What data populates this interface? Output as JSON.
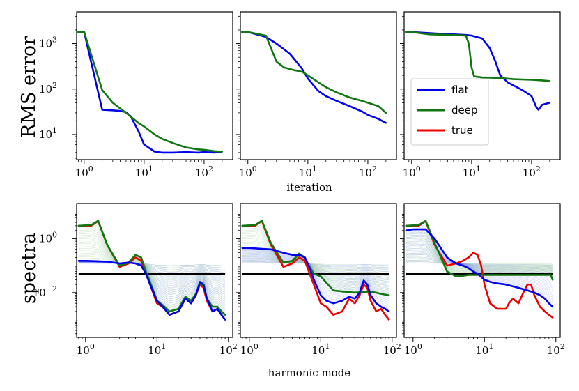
{
  "chart_data": {
    "type": "line",
    "rows": [
      {
        "ylabel": "RMS error",
        "xlabel": "iteration",
        "xscale": "log",
        "yscale": "log",
        "xlim": [
          0.75,
          300
        ],
        "ylim": [
          2.8,
          5000
        ],
        "xticks": [
          {
            "value": 1,
            "base": "10",
            "exp": "0"
          },
          {
            "value": 10,
            "base": "10",
            "exp": "1"
          },
          {
            "value": 100,
            "base": "10",
            "exp": "2"
          }
        ],
        "yticks": [
          {
            "value": 10,
            "base": "10",
            "exp": "1"
          },
          {
            "value": 100,
            "base": "10",
            "exp": "2"
          },
          {
            "value": 1000,
            "base": "10",
            "exp": "3"
          }
        ],
        "panels": [
          {
            "series": [
              {
                "name": "flat",
                "color": "#0000ee",
                "x": [
                  0.8,
                  1,
                  2,
                  3,
                  4,
                  5,
                  6,
                  8,
                  10,
                  15,
                  20,
                  30,
                  50,
                  80,
                  100,
                  150,
                  200
                ],
                "y": [
                  1800,
                  1800,
                  35,
                  34,
                  33,
                  31,
                  25,
                  12,
                  6,
                  4.2,
                  4,
                  4,
                  4.1,
                  4,
                  4.1,
                  4.0,
                  4.2
                ]
              },
              {
                "name": "deep",
                "color": "#117711",
                "x": [
                  0.8,
                  1,
                  2,
                  3,
                  5,
                  8,
                  10,
                  15,
                  20,
                  30,
                  50,
                  80,
                  100,
                  150,
                  200
                ],
                "y": [
                  1800,
                  1800,
                  95,
                  50,
                  30,
                  18,
                  15,
                  10,
                  8,
                  6.5,
                  5.2,
                  4.7,
                  4.6,
                  4.3,
                  4.2
                ]
              }
            ]
          },
          {
            "series": [
              {
                "name": "flat",
                "color": "#0000ee",
                "x": [
                  0.8,
                  1,
                  2,
                  3,
                  5,
                  8,
                  10,
                  15,
                  20,
                  30,
                  50,
                  80,
                  100,
                  150,
                  200
                ],
                "y": [
                  1800,
                  1800,
                  1400,
                  1000,
                  600,
                  280,
                  170,
                  90,
                  70,
                  55,
                  42,
                  32,
                  27,
                  22,
                  18
                ]
              },
              {
                "name": "deep",
                "color": "#117711",
                "x": [
                  0.8,
                  1,
                  2,
                  3,
                  4,
                  6,
                  8,
                  10,
                  15,
                  20,
                  30,
                  50,
                  80,
                  100,
                  150,
                  200
                ],
                "y": [
                  1800,
                  1800,
                  1500,
                  400,
                  300,
                  260,
                  240,
                  200,
                  140,
                  110,
                  85,
                  65,
                  55,
                  50,
                  42,
                  30
                ]
              }
            ]
          },
          {
            "series": [
              {
                "name": "flat",
                "color": "#0000ee",
                "x": [
                  0.8,
                  1,
                  2,
                  3,
                  5,
                  8,
                  10,
                  15,
                  20,
                  25,
                  30,
                  40,
                  50,
                  70,
                  100,
                  120,
                  130,
                  150,
                  200
                ],
                "y": [
                  1800,
                  1800,
                  1700,
                  1650,
                  1600,
                  1550,
                  1500,
                  1300,
                  800,
                  400,
                  200,
                  140,
                  120,
                  95,
                  70,
                  40,
                  35,
                  45,
                  50
                ]
              },
              {
                "name": "deep",
                "color": "#117711",
                "x": [
                  0.8,
                  1,
                  2,
                  5,
                  8,
                  9,
                  10,
                  11,
                  15,
                  30,
                  50,
                  100,
                  150,
                  200
                ],
                "y": [
                  1800,
                  1800,
                  1600,
                  1550,
                  1500,
                  1000,
                  300,
                  190,
                  180,
                  175,
                  165,
                  160,
                  155,
                  150
                ]
              }
            ]
          }
        ]
      },
      {
        "ylabel": "spectra",
        "xlabel": "harmonic mode",
        "xscale": "log",
        "yscale": "log",
        "xlim": [
          0.75,
          115
        ],
        "ylim": [
          0.00022,
          20
        ],
        "xticks": [
          {
            "value": 1,
            "base": "10",
            "exp": "0"
          },
          {
            "value": 10,
            "base": "10",
            "exp": "1"
          },
          {
            "value": 100,
            "base": "10",
            "exp": "2"
          }
        ],
        "yticks": [
          {
            "value": 0.01,
            "base": "10",
            "exp": "−2"
          },
          {
            "value": 1,
            "base": "10",
            "exp": "0"
          }
        ],
        "panels": [
          {
            "reference_level": 0.05,
            "series": [
              {
                "name": "true",
                "color": "#ee0000",
                "x": [
                  0.8,
                  1.2,
                  1.5,
                  2,
                  3,
                  4,
                  5,
                  6,
                  7,
                  8,
                  10,
                  12,
                  15,
                  20,
                  25,
                  30,
                  35,
                  40,
                  45,
                  50,
                  60,
                  70,
                  80,
                  90
                ],
                "y": [
                  3,
                  3,
                  4.5,
                  0.6,
                  0.09,
                  0.12,
                  0.2,
                  0.15,
                  0.05,
                  0.02,
                  0.004,
                  0.003,
                  0.0015,
                  0.002,
                  0.006,
                  0.004,
                  0.008,
                  0.02,
                  0.015,
                  0.005,
                  0.002,
                  0.0025,
                  0.0015,
                  0.001
                ]
              },
              {
                "name": "deep",
                "color": "#117711",
                "x": [
                  0.8,
                  1.2,
                  1.5,
                  2,
                  3,
                  4,
                  5,
                  6,
                  7,
                  8,
                  10,
                  12,
                  15,
                  20,
                  25,
                  30,
                  35,
                  40,
                  45,
                  50,
                  60,
                  70,
                  80,
                  90
                ],
                "y": [
                  3,
                  3.2,
                  4.6,
                  0.6,
                  0.1,
                  0.13,
                  0.25,
                  0.2,
                  0.06,
                  0.025,
                  0.005,
                  0.0035,
                  0.002,
                  0.0025,
                  0.007,
                  0.005,
                  0.009,
                  0.022,
                  0.017,
                  0.006,
                  0.003,
                  0.003,
                  0.002,
                  0.0015
                ]
              },
              {
                "name": "flat",
                "color": "#0000ee",
                "x": [
                  0.8,
                  1,
                  2,
                  3,
                  4,
                  5,
                  6,
                  7,
                  8,
                  10,
                  12,
                  15,
                  20,
                  25,
                  30,
                  35,
                  40,
                  45,
                  50,
                  60,
                  70,
                  80,
                  90
                ],
                "y": [
                  0.15,
                  0.15,
                  0.14,
                  0.12,
                  0.13,
                  0.12,
                  0.1,
                  0.05,
                  0.02,
                  0.005,
                  0.003,
                  0.0015,
                  0.002,
                  0.006,
                  0.004,
                  0.008,
                  0.025,
                  0.02,
                  0.006,
                  0.002,
                  0.0025,
                  0.0015,
                  0.001
                ]
              }
            ]
          },
          {
            "reference_level": 0.05,
            "series": [
              {
                "name": "true",
                "color": "#ee0000",
                "x": [
                  0.8,
                  1.2,
                  1.5,
                  2,
                  3,
                  4,
                  5,
                  6,
                  7,
                  8,
                  10,
                  12,
                  15,
                  20,
                  25,
                  30,
                  35,
                  40,
                  45,
                  50,
                  60,
                  70,
                  80,
                  90
                ],
                "y": [
                  3,
                  3,
                  4.5,
                  0.6,
                  0.09,
                  0.12,
                  0.2,
                  0.15,
                  0.05,
                  0.02,
                  0.004,
                  0.003,
                  0.0015,
                  0.002,
                  0.006,
                  0.004,
                  0.008,
                  0.02,
                  0.015,
                  0.005,
                  0.002,
                  0.0025,
                  0.0015,
                  0.001
                ]
              },
              {
                "name": "deep",
                "color": "#117711",
                "x": [
                  0.8,
                  1.2,
                  1.5,
                  2,
                  3,
                  4,
                  5,
                  6,
                  7,
                  8,
                  10,
                  15,
                  20,
                  30,
                  50,
                  70,
                  90
                ],
                "y": [
                  3,
                  3.2,
                  4.6,
                  0.7,
                  0.13,
                  0.15,
                  0.28,
                  0.2,
                  0.09,
                  0.05,
                  0.04,
                  0.012,
                  0.011,
                  0.01,
                  0.011,
                  0.009,
                  0.008
                ]
              },
              {
                "name": "flat",
                "color": "#0000ee",
                "x": [
                  0.8,
                  1,
                  2,
                  3,
                  4,
                  5,
                  6,
                  7,
                  8,
                  10,
                  12,
                  15,
                  20,
                  25,
                  30,
                  35,
                  40,
                  45,
                  50,
                  60,
                  70,
                  80,
                  90
                ],
                "y": [
                  0.45,
                  0.45,
                  0.4,
                  0.3,
                  0.25,
                  0.25,
                  0.2,
                  0.08,
                  0.03,
                  0.008,
                  0.005,
                  0.004,
                  0.005,
                  0.007,
                  0.006,
                  0.01,
                  0.028,
                  0.02,
                  0.008,
                  0.004,
                  0.003,
                  0.0025,
                  0.002
                ]
              }
            ]
          },
          {
            "reference_level": 0.05,
            "series": [
              {
                "name": "true",
                "color": "#ee0000",
                "x": [
                  0.8,
                  1.2,
                  1.5,
                  2,
                  3,
                  4,
                  5,
                  6,
                  7,
                  8,
                  9,
                  10,
                  12,
                  15,
                  20,
                  22,
                  25,
                  30,
                  35,
                  40,
                  45,
                  50,
                  60,
                  70,
                  80,
                  90
                ],
                "y": [
                  3,
                  3,
                  4.5,
                  0.6,
                  0.1,
                  0.12,
                  0.15,
                  0.2,
                  0.3,
                  0.25,
                  0.1,
                  0.02,
                  0.004,
                  0.0025,
                  0.0025,
                  0.004,
                  0.006,
                  0.004,
                  0.01,
                  0.02,
                  0.02,
                  0.008,
                  0.003,
                  0.002,
                  0.0015,
                  0.0012
                ]
              },
              {
                "name": "deep",
                "color": "#117711",
                "x": [
                  0.8,
                  1.2,
                  1.5,
                  2,
                  3,
                  4,
                  5,
                  6,
                  8,
                  10,
                  15,
                  20,
                  30,
                  50,
                  70,
                  85,
                  90
                ],
                "y": [
                  3,
                  3.2,
                  4.6,
                  0.7,
                  0.06,
                  0.04,
                  0.042,
                  0.045,
                  0.045,
                  0.045,
                  0.045,
                  0.045,
                  0.045,
                  0.045,
                  0.045,
                  0.045,
                  0.03
                ]
              },
              {
                "name": "flat",
                "color": "#0000ee",
                "x": [
                  0.8,
                  1,
                  1.5,
                  2,
                  3,
                  4,
                  5,
                  6,
                  7,
                  8,
                  10,
                  12,
                  15,
                  20,
                  30,
                  40,
                  50,
                  60,
                  70,
                  80,
                  90
                ],
                "y": [
                  2.0,
                  2.2,
                  2.2,
                  1.0,
                  0.2,
                  0.12,
                  0.1,
                  0.08,
                  0.06,
                  0.05,
                  0.03,
                  0.025,
                  0.022,
                  0.02,
                  0.015,
                  0.012,
                  0.01,
                  0.008,
                  0.006,
                  0.004,
                  0.003
                ]
              }
            ]
          }
        ]
      }
    ],
    "legend": {
      "location": "center-left of top-right panel",
      "entries": [
        {
          "name": "flat",
          "color": "#0000ee"
        },
        {
          "name": "deep",
          "color": "#117711"
        },
        {
          "name": "true",
          "color": "#ee0000"
        }
      ]
    }
  }
}
